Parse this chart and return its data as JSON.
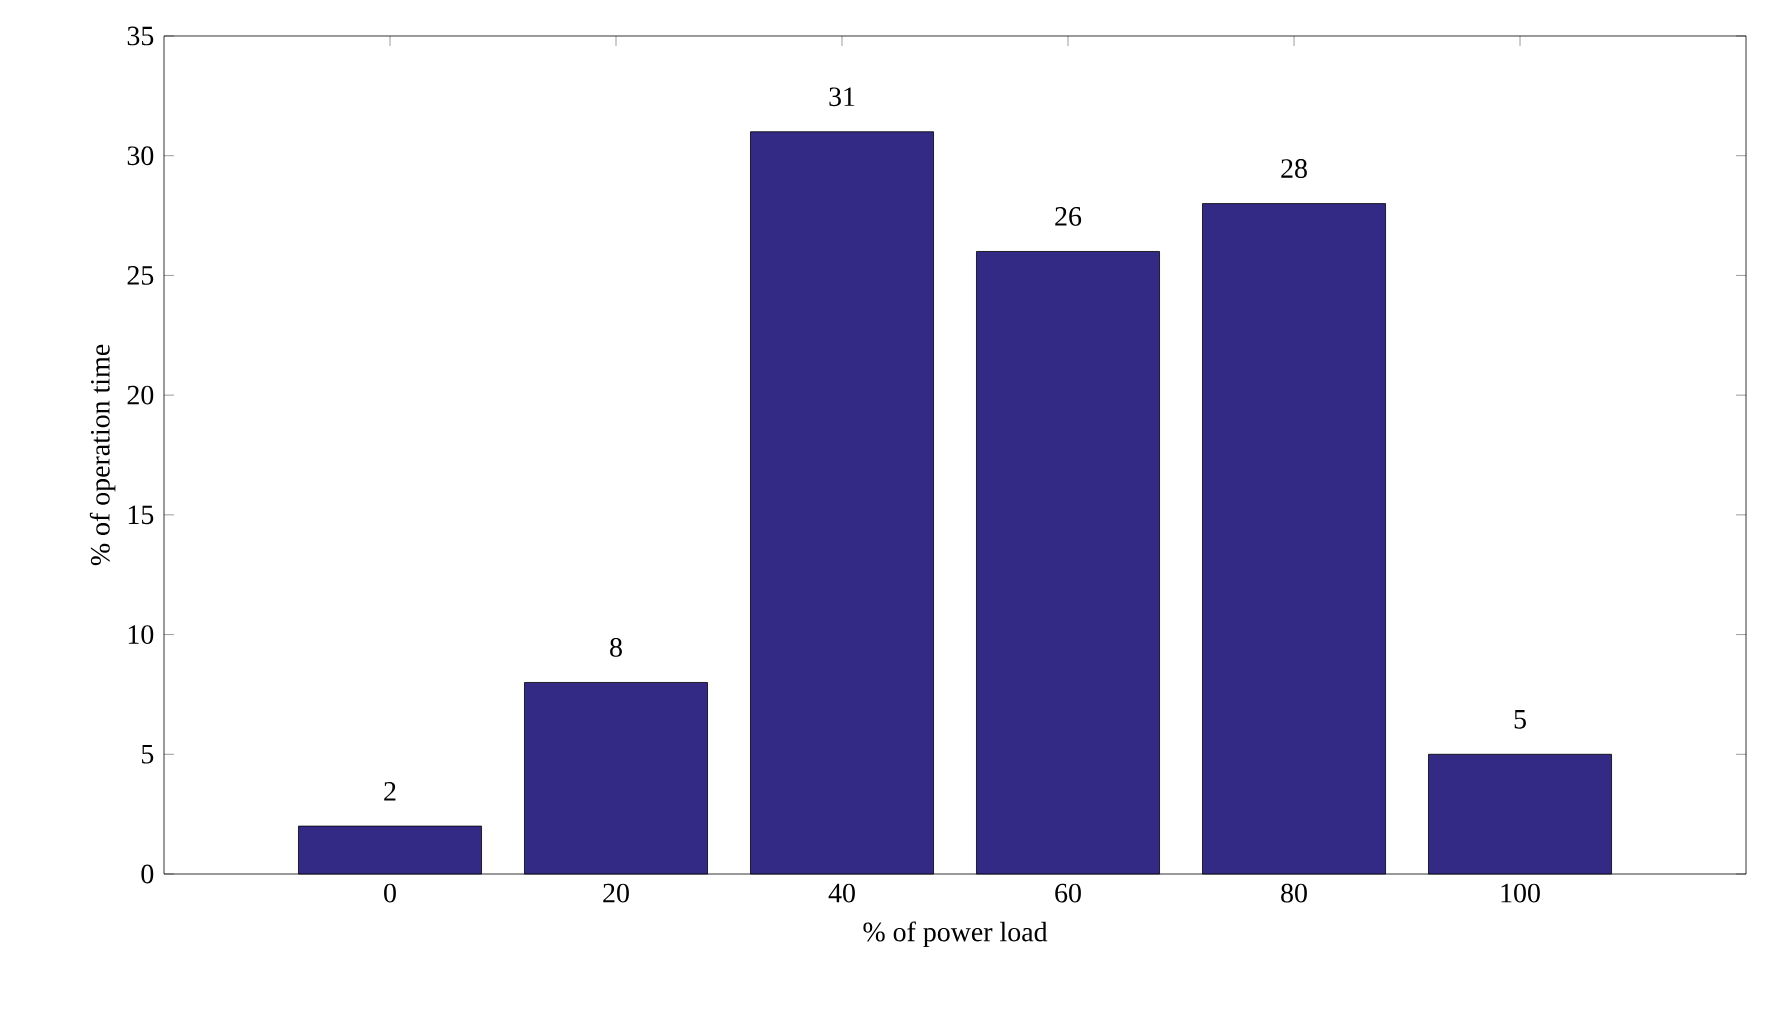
{
  "chart_data": {
    "type": "bar",
    "xlabel": "% of power load",
    "ylabel": "% of operation time",
    "x": [
      0,
      20,
      40,
      60,
      80,
      100
    ],
    "values": [
      2,
      8,
      31,
      26,
      28,
      5
    ],
    "color": "#332a86",
    "xlim": [
      -20,
      120
    ],
    "xticks": [
      0,
      20,
      40,
      60,
      80,
      100
    ],
    "ylim": [
      0,
      35
    ],
    "yticks": [
      0,
      5,
      10,
      15,
      20,
      25,
      30,
      35
    ],
    "data_labels": true,
    "grid": false
  }
}
